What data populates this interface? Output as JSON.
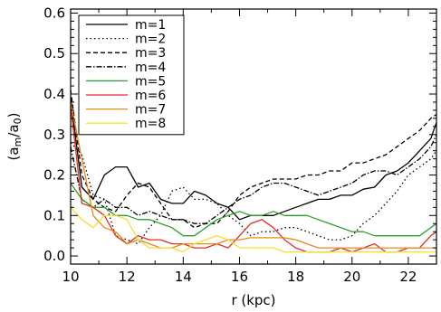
{
  "chart_data": {
    "type": "line",
    "title": "",
    "xlabel": "r (kpc)",
    "ylabel": "(a_m/a_0)",
    "ylabel_main": "(a",
    "ylabel_sub1": "m",
    "ylabel_mid": "/a",
    "ylabel_sub2": "0",
    "ylabel_end": ")",
    "xlim": [
      10,
      23
    ],
    "ylim": [
      -0.02,
      0.61
    ],
    "xticks": [
      10,
      12,
      14,
      16,
      18,
      20,
      22
    ],
    "yticks": [
      0.0,
      0.1,
      0.2,
      0.3,
      0.4,
      0.5,
      0.6
    ],
    "xtick_labels": [
      "10",
      "12",
      "14",
      "16",
      "18",
      "20",
      "22"
    ],
    "ytick_labels": [
      "0.0",
      "0.1",
      "0.2",
      "0.3",
      "0.4",
      "0.5",
      "0.6"
    ],
    "legend_position": "top-left",
    "grid": false,
    "series": [
      {
        "name": "m=1",
        "color": "#000000",
        "dash": "",
        "x": [
          10.0,
          10.4,
          10.8,
          11.2,
          11.6,
          12.0,
          12.4,
          12.8,
          13.2,
          13.6,
          14.0,
          14.4,
          14.8,
          15.2,
          15.6,
          16.0,
          16.4,
          16.8,
          17.2,
          17.6,
          18.0,
          18.4,
          18.8,
          19.2,
          19.6,
          20.0,
          20.4,
          20.8,
          21.2,
          21.6,
          22.0,
          22.4,
          22.8,
          23.0
        ],
        "y": [
          0.39,
          0.17,
          0.14,
          0.2,
          0.22,
          0.22,
          0.17,
          0.18,
          0.14,
          0.13,
          0.13,
          0.16,
          0.15,
          0.13,
          0.12,
          0.09,
          0.1,
          0.1,
          0.1,
          0.11,
          0.12,
          0.13,
          0.14,
          0.14,
          0.15,
          0.15,
          0.165,
          0.17,
          0.2,
          0.21,
          0.23,
          0.26,
          0.29,
          0.33
        ]
      },
      {
        "name": "m=2",
        "color": "#000000",
        "dash": "1.5,3",
        "x": [
          10.0,
          10.4,
          10.8,
          11.2,
          11.6,
          12.0,
          12.4,
          12.8,
          13.2,
          13.6,
          14.0,
          14.4,
          14.8,
          15.2,
          15.6,
          16.0,
          16.4,
          16.8,
          17.2,
          17.6,
          18.0,
          18.4,
          18.8,
          19.2,
          19.6,
          20.0,
          20.4,
          20.8,
          21.2,
          21.6,
          22.0,
          22.4,
          22.8,
          23.0
        ],
        "y": [
          0.28,
          0.25,
          0.15,
          0.14,
          0.05,
          0.04,
          0.03,
          0.07,
          0.1,
          0.16,
          0.17,
          0.14,
          0.14,
          0.13,
          0.1,
          0.08,
          0.05,
          0.06,
          0.06,
          0.07,
          0.07,
          0.06,
          0.05,
          0.04,
          0.04,
          0.05,
          0.08,
          0.1,
          0.13,
          0.16,
          0.2,
          0.22,
          0.24,
          0.26
        ]
      },
      {
        "name": "m=3",
        "color": "#000000",
        "dash": "5,3",
        "x": [
          10.0,
          10.4,
          10.8,
          11.2,
          11.6,
          12.0,
          12.4,
          12.8,
          13.2,
          13.6,
          14.0,
          14.4,
          14.8,
          15.2,
          15.6,
          16.0,
          16.4,
          16.8,
          17.2,
          17.6,
          18.0,
          18.4,
          18.8,
          19.2,
          19.6,
          20.0,
          20.4,
          20.8,
          21.2,
          21.6,
          22.0,
          22.4,
          22.8,
          23.0
        ],
        "y": [
          0.41,
          0.2,
          0.14,
          0.12,
          0.11,
          0.15,
          0.18,
          0.17,
          0.13,
          0.09,
          0.09,
          0.07,
          0.08,
          0.08,
          0.11,
          0.15,
          0.17,
          0.18,
          0.19,
          0.19,
          0.19,
          0.2,
          0.2,
          0.21,
          0.21,
          0.23,
          0.23,
          0.24,
          0.25,
          0.27,
          0.29,
          0.31,
          0.34,
          0.35
        ]
      },
      {
        "name": "m=4",
        "color": "#000000",
        "dash": "6,2,1.5,2",
        "x": [
          10.0,
          10.4,
          10.8,
          11.2,
          11.6,
          12.0,
          12.4,
          12.8,
          13.2,
          13.6,
          14.0,
          14.4,
          14.8,
          15.2,
          15.6,
          16.0,
          16.4,
          16.8,
          17.2,
          17.6,
          18.0,
          18.4,
          18.8,
          19.2,
          19.6,
          20.0,
          20.4,
          20.8,
          21.2,
          21.6,
          22.0,
          22.4,
          22.8,
          23.0
        ],
        "y": [
          0.27,
          0.14,
          0.12,
          0.14,
          0.12,
          0.12,
          0.1,
          0.11,
          0.1,
          0.09,
          0.09,
          0.08,
          0.08,
          0.1,
          0.12,
          0.14,
          0.15,
          0.17,
          0.18,
          0.18,
          0.17,
          0.16,
          0.15,
          0.16,
          0.17,
          0.18,
          0.2,
          0.21,
          0.21,
          0.2,
          0.22,
          0.24,
          0.27,
          0.3
        ]
      },
      {
        "name": "m=5",
        "color": "#2aa02a",
        "dash": "",
        "x": [
          10.0,
          10.4,
          10.8,
          11.2,
          11.6,
          12.0,
          12.4,
          12.8,
          13.2,
          13.6,
          14.0,
          14.4,
          14.8,
          15.2,
          15.6,
          16.0,
          16.4,
          16.8,
          17.2,
          17.6,
          18.0,
          18.4,
          18.8,
          19.2,
          19.6,
          20.0,
          20.4,
          20.8,
          21.2,
          21.6,
          22.0,
          22.4,
          22.8,
          23.0
        ],
        "y": [
          0.18,
          0.14,
          0.12,
          0.12,
          0.1,
          0.1,
          0.09,
          0.09,
          0.08,
          0.07,
          0.05,
          0.05,
          0.07,
          0.09,
          0.1,
          0.11,
          0.1,
          0.1,
          0.11,
          0.1,
          0.1,
          0.1,
          0.09,
          0.08,
          0.07,
          0.06,
          0.06,
          0.05,
          0.05,
          0.05,
          0.05,
          0.05,
          0.07,
          0.08
        ]
      },
      {
        "name": "m=6",
        "color": "#e03020",
        "dash": "",
        "x": [
          10.0,
          10.4,
          10.8,
          11.2,
          11.6,
          12.0,
          12.4,
          12.8,
          13.2,
          13.6,
          14.0,
          14.4,
          14.8,
          15.2,
          15.6,
          16.0,
          16.4,
          16.8,
          17.2,
          17.6,
          18.0,
          18.4,
          18.8,
          19.2,
          19.6,
          20.0,
          20.4,
          20.8,
          21.2,
          21.6,
          22.0,
          22.4,
          22.8,
          23.0
        ],
        "y": [
          0.37,
          0.13,
          0.12,
          0.1,
          0.05,
          0.03,
          0.05,
          0.04,
          0.04,
          0.03,
          0.03,
          0.02,
          0.02,
          0.03,
          0.02,
          0.05,
          0.08,
          0.09,
          0.07,
          0.04,
          0.02,
          0.01,
          0.01,
          0.01,
          0.02,
          0.01,
          0.02,
          0.03,
          0.01,
          0.01,
          0.02,
          0.02,
          0.05,
          0.06
        ]
      },
      {
        "name": "m=7",
        "color": "#e88a1a",
        "dash": "",
        "x": [
          10.0,
          10.4,
          10.8,
          11.2,
          11.6,
          12.0,
          12.4,
          12.8,
          13.2,
          13.6,
          14.0,
          14.4,
          14.8,
          15.2,
          15.6,
          16.0,
          16.4,
          16.8,
          17.2,
          17.6,
          18.0,
          18.4,
          18.8,
          19.2,
          19.6,
          20.0,
          20.4,
          20.8,
          21.2,
          21.6,
          22.0,
          22.4,
          22.8,
          23.0
        ],
        "y": [
          0.38,
          0.24,
          0.1,
          0.07,
          0.06,
          0.03,
          0.04,
          0.03,
          0.02,
          0.02,
          0.03,
          0.03,
          0.03,
          0.03,
          0.04,
          0.04,
          0.045,
          0.045,
          0.045,
          0.045,
          0.04,
          0.03,
          0.02,
          0.02,
          0.02,
          0.02,
          0.02,
          0.02,
          0.02,
          0.02,
          0.02,
          0.02,
          0.02,
          0.02
        ]
      },
      {
        "name": "m=8",
        "color": "#f5e030",
        "dash": "",
        "x": [
          10.0,
          10.4,
          10.8,
          11.2,
          11.6,
          12.0,
          12.4,
          12.8,
          13.2,
          13.6,
          14.0,
          14.4,
          14.8,
          15.2,
          15.6,
          16.0,
          16.4,
          16.8,
          17.2,
          17.6,
          18.0,
          18.4,
          18.8,
          19.2,
          19.6,
          20.0,
          20.4,
          20.8,
          21.2,
          21.6,
          22.0,
          22.4,
          22.8,
          23.0
        ],
        "y": [
          0.12,
          0.09,
          0.07,
          0.1,
          0.1,
          0.09,
          0.04,
          0.02,
          0.02,
          0.02,
          0.01,
          0.03,
          0.04,
          0.05,
          0.04,
          0.02,
          0.02,
          0.02,
          0.02,
          0.01,
          0.01,
          0.01,
          0.01,
          0.01,
          0.01,
          0.01,
          0.01,
          0.01,
          0.01,
          0.01,
          0.01,
          0.01,
          0.01,
          0.01
        ]
      }
    ]
  }
}
